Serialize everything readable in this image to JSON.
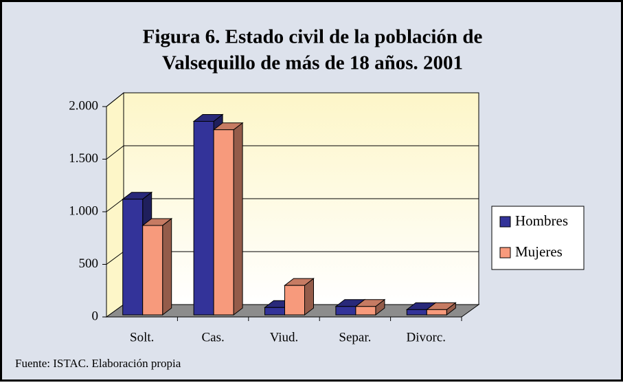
{
  "chart_data": {
    "type": "bar3d",
    "title": [
      "Figura 6. Estado civil de la población de",
      "Valsequillo de más de 18 años. 2001"
    ],
    "categories": [
      "Solt.",
      "Cas.",
      "Viud.",
      "Separ.",
      "Divorc."
    ],
    "series": [
      {
        "name": "Hombres",
        "color": "#333399",
        "values": [
          1100,
          1840,
          70,
          80,
          50
        ]
      },
      {
        "name": "Mujeres",
        "color": "#f79a7c",
        "values": [
          850,
          1760,
          280,
          80,
          50
        ]
      }
    ],
    "ylim": [
      0,
      2000
    ],
    "yticks": [
      0,
      500,
      {
        "value": 1000,
        "label": "1.000"
      },
      {
        "value": 1500,
        "label": "1.500"
      },
      {
        "value": 2000,
        "label": "2.000"
      }
    ],
    "grid": true,
    "legend": "right",
    "source": "Fuente: ISTAC. Elaboración propia"
  }
}
